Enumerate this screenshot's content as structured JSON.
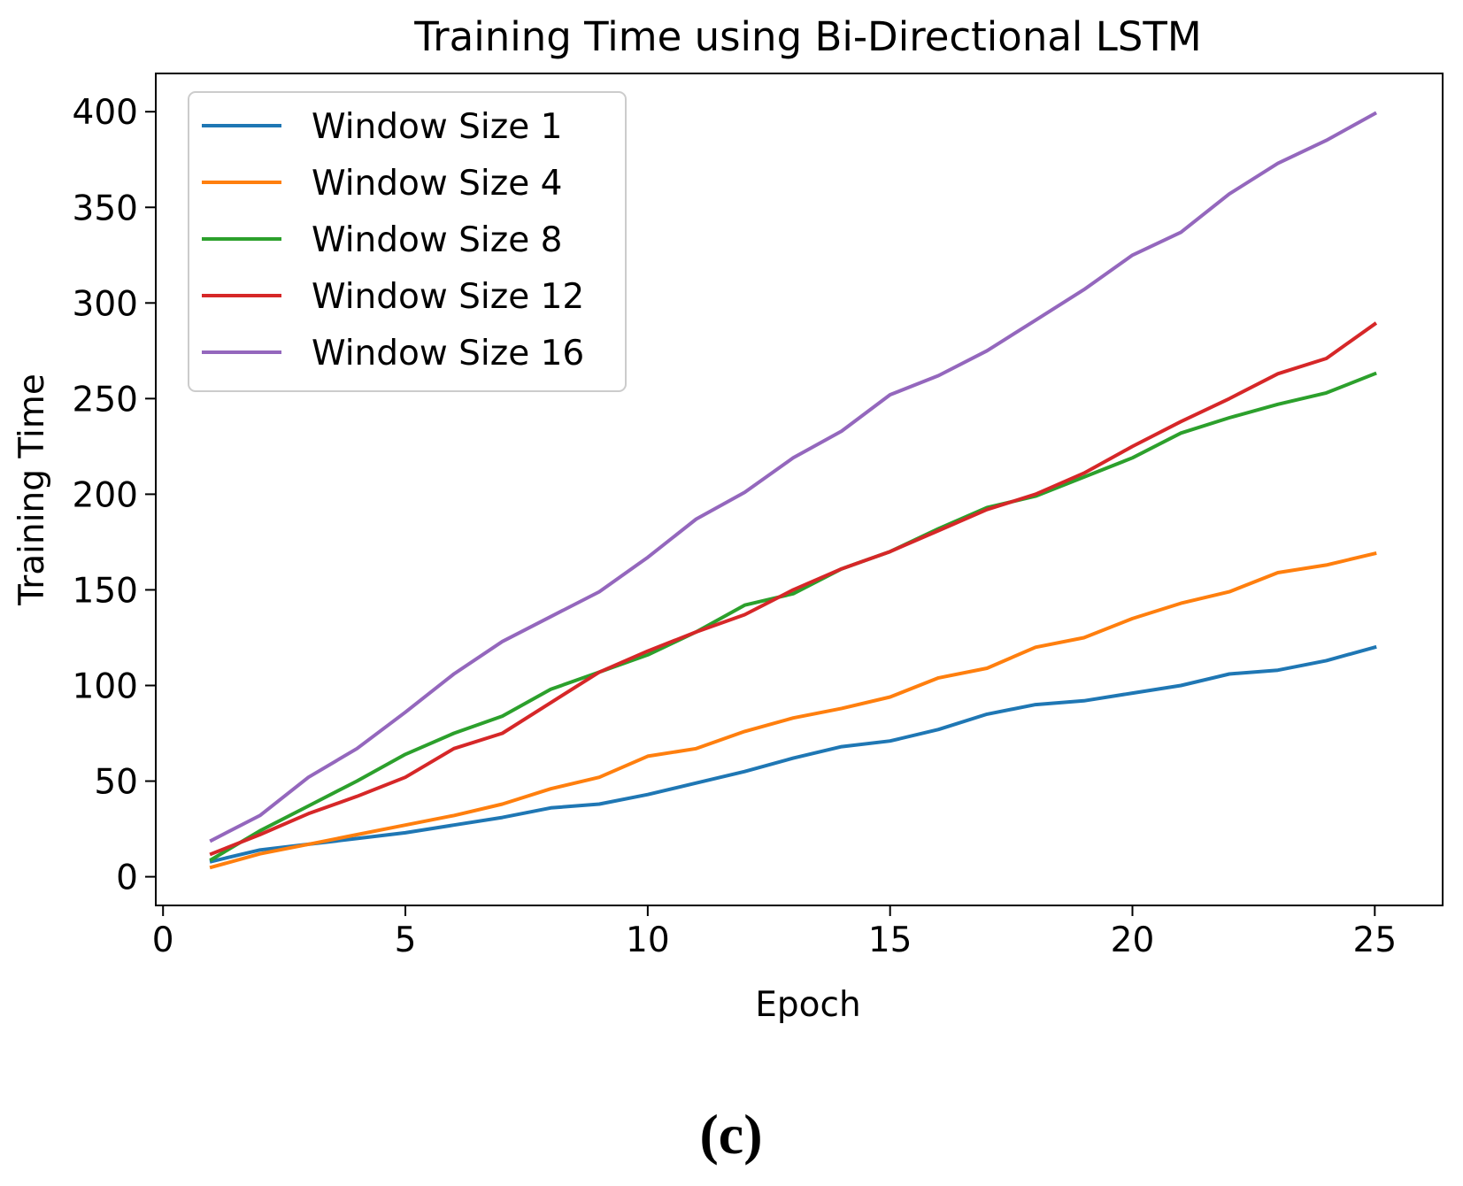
{
  "chart_data": {
    "type": "line",
    "title": "Training Time using Bi-Directional LSTM",
    "xlabel": "Epoch",
    "ylabel": "Training Time",
    "xlim": [
      -0.15,
      26.4
    ],
    "ylim": [
      -15,
      420
    ],
    "xticks": [
      0,
      5,
      10,
      15,
      20,
      25
    ],
    "yticks": [
      0,
      50,
      100,
      150,
      200,
      250,
      300,
      350,
      400
    ],
    "legend_position": "upper-left",
    "x": [
      1,
      2,
      3,
      4,
      5,
      6,
      7,
      8,
      9,
      10,
      11,
      12,
      13,
      14,
      15,
      16,
      17,
      18,
      19,
      20,
      21,
      22,
      23,
      24,
      25
    ],
    "series": [
      {
        "name": "Window Size 1",
        "color": "#1f77b4",
        "values": [
          8,
          14,
          17,
          20,
          23,
          27,
          31,
          36,
          38,
          43,
          49,
          55,
          62,
          68,
          71,
          77,
          85,
          90,
          92,
          96,
          100,
          106,
          108,
          113,
          120
        ]
      },
      {
        "name": "Window Size 4",
        "color": "#ff7f0e",
        "values": [
          5,
          12,
          17,
          22,
          27,
          32,
          38,
          46,
          52,
          63,
          67,
          76,
          83,
          88,
          94,
          104,
          109,
          120,
          125,
          135,
          143,
          149,
          159,
          163,
          169
        ]
      },
      {
        "name": "Window Size 8",
        "color": "#2ca02c",
        "values": [
          9,
          24,
          37,
          50,
          64,
          75,
          84,
          98,
          107,
          116,
          128,
          142,
          148,
          161,
          170,
          182,
          193,
          199,
          209,
          219,
          232,
          240,
          247,
          253,
          263
        ]
      },
      {
        "name": "Window Size 12",
        "color": "#d62728",
        "values": [
          12,
          22,
          33,
          42,
          52,
          67,
          75,
          91,
          107,
          118,
          128,
          137,
          150,
          161,
          170,
          181,
          192,
          200,
          211,
          225,
          238,
          250,
          263,
          271,
          289
        ]
      },
      {
        "name": "Window Size 16",
        "color": "#9467bd",
        "values": [
          19,
          32,
          52,
          67,
          86,
          106,
          123,
          136,
          149,
          167,
          187,
          201,
          219,
          233,
          252,
          262,
          275,
          291,
          307,
          325,
          337,
          357,
          373,
          385,
          399
        ]
      }
    ]
  },
  "caption": "(c)"
}
